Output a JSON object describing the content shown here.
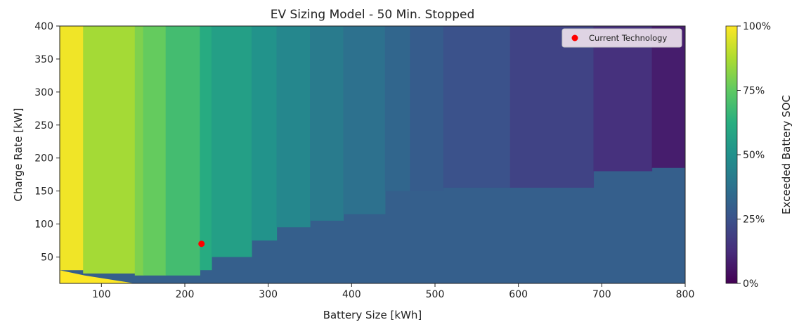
{
  "chart_data": {
    "type": "heatmap",
    "title": "EV Sizing Model - 50 Min. Stopped",
    "xlabel": "Battery Size [kWh]",
    "ylabel": "Charge Rate [kW]",
    "xlim": [
      50,
      800
    ],
    "ylim": [
      10,
      400
    ],
    "xticks": [
      100,
      200,
      300,
      400,
      500,
      600,
      700,
      800
    ],
    "yticks": [
      50,
      100,
      150,
      200,
      250,
      300,
      350,
      400
    ],
    "colorbar": {
      "label": "Exceeded Battery SOC",
      "ticks": [
        "0%",
        "25%",
        "50%",
        "75%",
        "100%"
      ],
      "tick_values": [
        0,
        25,
        50,
        75,
        100
      ],
      "colormap": "viridis"
    },
    "legend": {
      "placement": "top-right",
      "label": "Current Technology"
    },
    "grid": false,
    "bands": [
      {
        "x0": 50,
        "x1": 78,
        "value": 98,
        "low_cut_y": 30
      },
      {
        "x0": 78,
        "x1": 140,
        "value": 86,
        "low_cut_y": 25
      },
      {
        "x0": 140,
        "x1": 150,
        "value": 80,
        "low_cut_y": 22
      },
      {
        "x0": 150,
        "x1": 177,
        "value": 76,
        "low_cut_y": 22
      },
      {
        "x0": 177,
        "x1": 218,
        "value": 69,
        "low_cut_y": 22
      },
      {
        "x0": 218,
        "x1": 232,
        "value": 61,
        "low_cut_y": 30
      },
      {
        "x0": 232,
        "x1": 280,
        "value": 56,
        "low_cut_y": 50
      },
      {
        "x0": 280,
        "x1": 310,
        "value": 51,
        "low_cut_y": 75
      },
      {
        "x0": 310,
        "x1": 350,
        "value": 46,
        "low_cut_y": 95
      },
      {
        "x0": 350,
        "x1": 390,
        "value": 41,
        "low_cut_y": 105
      },
      {
        "x0": 390,
        "x1": 440,
        "value": 37,
        "low_cut_y": 115
      },
      {
        "x0": 440,
        "x1": 470,
        "value": 33,
        "low_cut_y": 150
      },
      {
        "x0": 470,
        "x1": 510,
        "value": 29,
        "low_cut_y": 150
      },
      {
        "x0": 510,
        "x1": 590,
        "value": 25,
        "low_cut_y": 155
      },
      {
        "x0": 590,
        "x1": 690,
        "value": 20,
        "low_cut_y": 155
      },
      {
        "x0": 690,
        "x1": 760,
        "value": 14,
        "low_cut_y": 180
      },
      {
        "x0": 760,
        "x1": 800,
        "value": 8,
        "low_cut_y": 185
      }
    ],
    "low_band": {
      "value": 30
    },
    "current_technology": {
      "x": 220,
      "y": 70,
      "color": "#ff0000"
    }
  }
}
